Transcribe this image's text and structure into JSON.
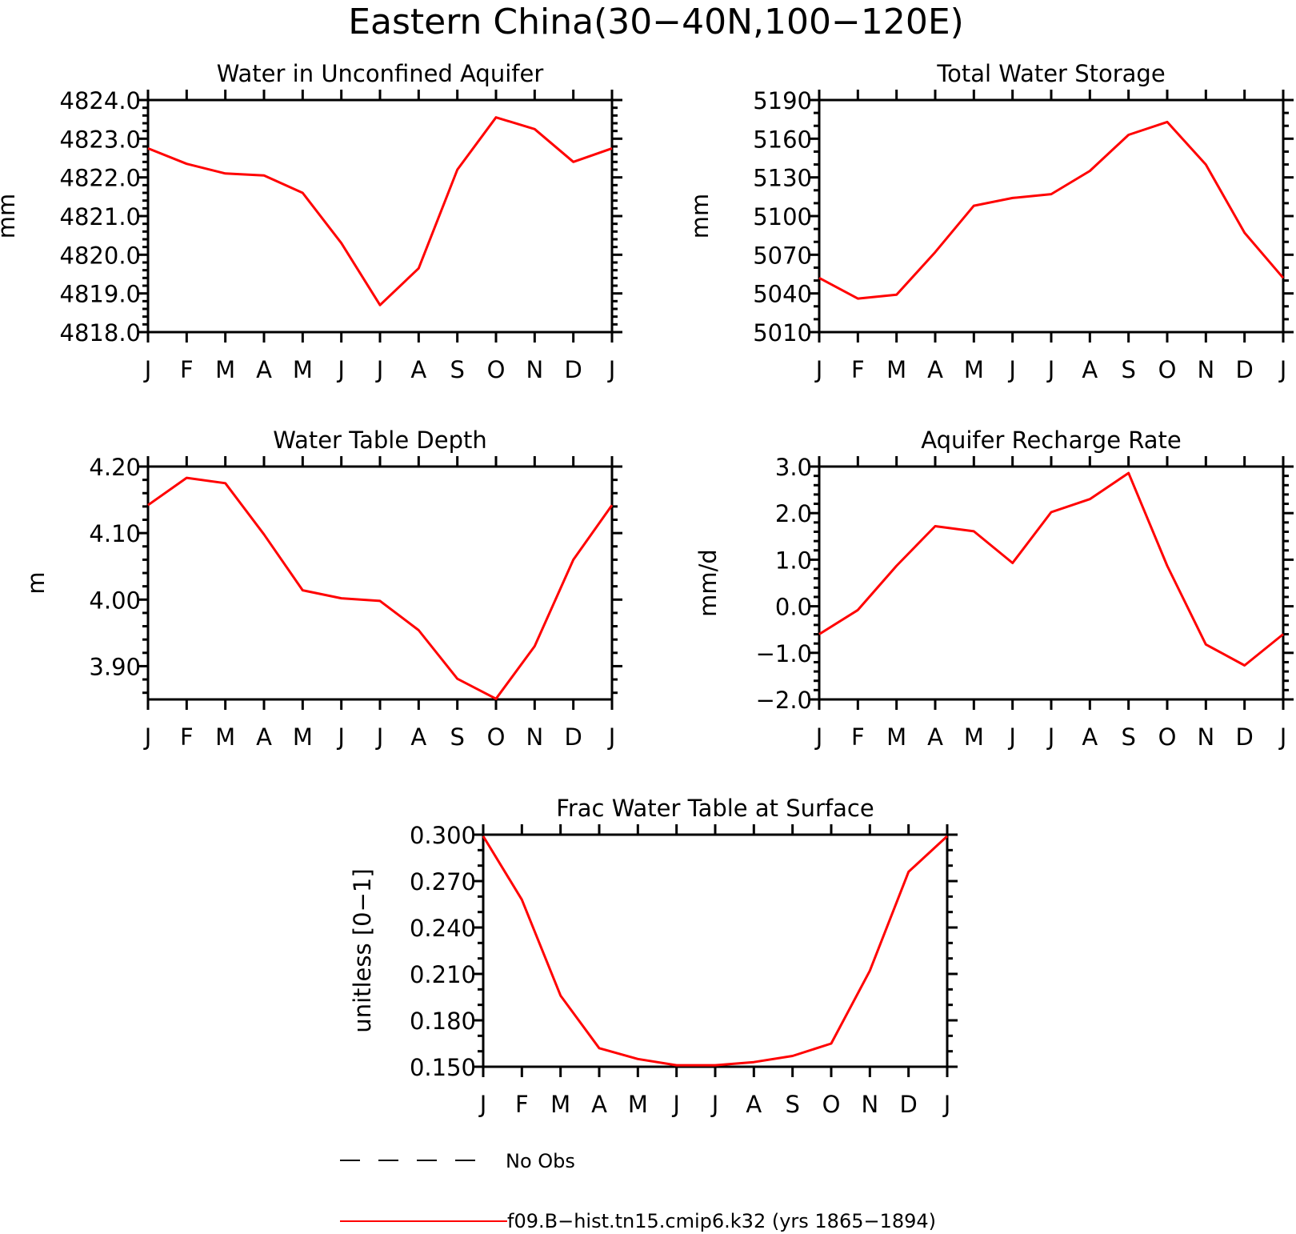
{
  "figure": {
    "title": "Eastern China(30−40N,100−120E)",
    "line_color": "#ff0000"
  },
  "months": [
    "J",
    "F",
    "M",
    "A",
    "M",
    "J",
    "J",
    "A",
    "S",
    "O",
    "N",
    "D",
    "J"
  ],
  "chart_data": [
    {
      "type": "line",
      "title": "Water in Unconfined Aquifer",
      "ylabel": "mm",
      "ylim": [
        4818.0,
        4824.0
      ],
      "yticks": [
        4818.0,
        4819.0,
        4820.0,
        4821.0,
        4822.0,
        4823.0,
        4824.0
      ],
      "ytick_labels": [
        "4818.0",
        "4819.0",
        "4820.0",
        "4821.0",
        "4822.0",
        "4823.0",
        "4824.0"
      ],
      "yminor": 5,
      "series": [
        {
          "values": [
            4822.75,
            4822.35,
            4822.1,
            4822.05,
            4821.6,
            4820.3,
            4818.7,
            4819.65,
            4822.2,
            4823.55,
            4823.25,
            4822.4,
            4822.75
          ]
        }
      ]
    },
    {
      "type": "line",
      "title": "Total Water Storage",
      "ylabel": "mm",
      "ylim": [
        5010,
        5190
      ],
      "yticks": [
        5010,
        5040,
        5070,
        5100,
        5130,
        5160,
        5190
      ],
      "ytick_labels": [
        "5010",
        "5040",
        "5070",
        "5100",
        "5130",
        "5160",
        "5190"
      ],
      "yminor": 3,
      "series": [
        {
          "values": [
            5052,
            5036,
            5039,
            5072,
            5108,
            5114,
            5117,
            5135,
            5163,
            5173,
            5140,
            5087,
            5052
          ]
        }
      ]
    },
    {
      "type": "line",
      "title": "Water Table Depth",
      "ylabel": "m",
      "ylim": [
        3.85,
        4.2
      ],
      "yticks": [
        3.9,
        4.0,
        4.1,
        4.2
      ],
      "ytick_labels": [
        "3.90",
        "4.00",
        "4.10",
        "4.20"
      ],
      "yminor": 5,
      "series": [
        {
          "values": [
            4.142,
            4.183,
            4.175,
            4.098,
            4.014,
            4.002,
            3.998,
            3.954,
            3.881,
            3.851,
            3.93,
            4.06,
            4.142
          ]
        }
      ]
    },
    {
      "type": "line",
      "title": "Aquifer Recharge Rate",
      "ylabel": "mm/d",
      "ylim": [
        -2.0,
        3.0
      ],
      "yticks": [
        -2.0,
        -1.0,
        0.0,
        1.0,
        2.0,
        3.0
      ],
      "ytick_labels": [
        "−2.0",
        "−1.0",
        "0.0",
        "1.0",
        "2.0",
        "3.0"
      ],
      "yminor": 5,
      "series": [
        {
          "values": [
            -0.6,
            -0.08,
            0.87,
            1.72,
            1.61,
            0.93,
            2.02,
            2.3,
            2.86,
            0.87,
            -0.82,
            -1.27,
            -0.6
          ]
        }
      ]
    },
    {
      "type": "line",
      "title": "Frac Water Table at Surface",
      "ylabel": "unitless [0−1]",
      "ylim": [
        0.15,
        0.3
      ],
      "yticks": [
        0.15,
        0.18,
        0.21,
        0.24,
        0.27,
        0.3
      ],
      "ytick_labels": [
        "0.150",
        "0.180",
        "0.210",
        "0.240",
        "0.270",
        "0.300"
      ],
      "yminor": 3,
      "series": [
        {
          "values": [
            0.299,
            0.258,
            0.196,
            0.162,
            0.155,
            0.151,
            0.151,
            0.153,
            0.157,
            0.165,
            0.212,
            0.276,
            0.299
          ]
        }
      ]
    }
  ],
  "legend": {
    "items": [
      {
        "label": "No Obs",
        "style": "dashed",
        "color": "#000000"
      },
      {
        "label": "f09.B−hist.tn15.cmip6.k32 (yrs 1865−1894)",
        "style": "solid",
        "color": "#ff0000"
      }
    ]
  }
}
